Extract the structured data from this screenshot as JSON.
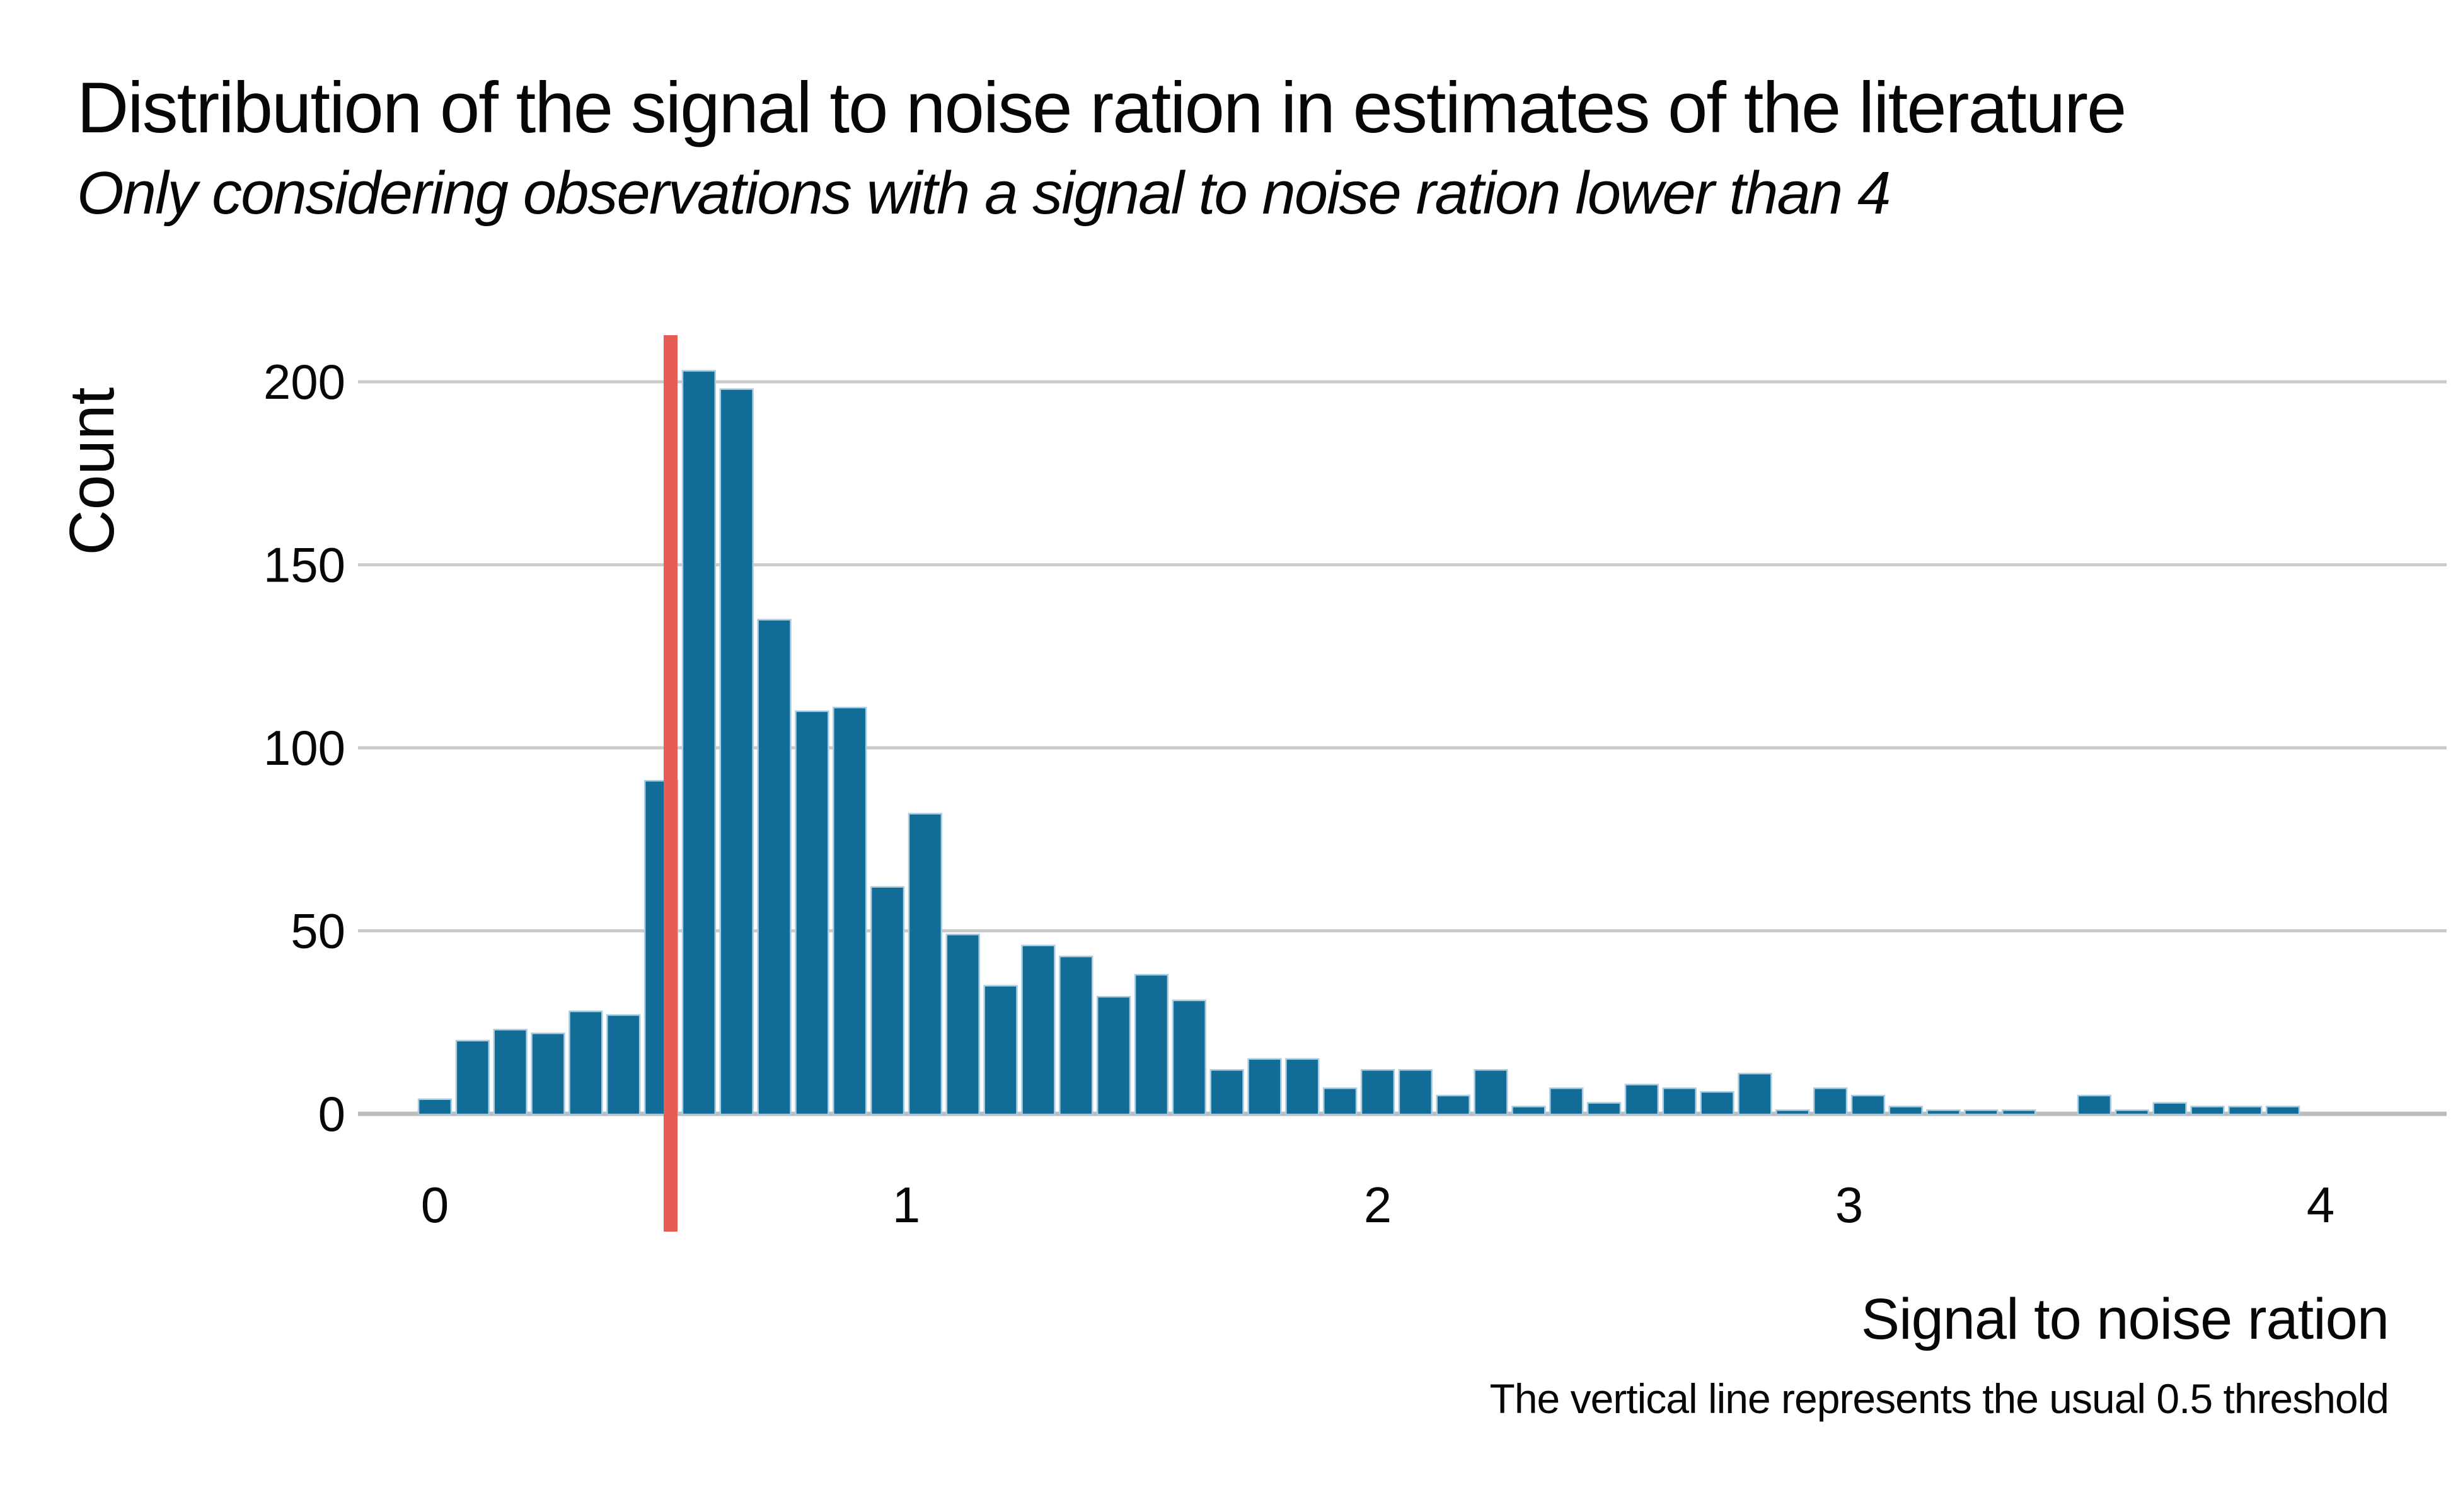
{
  "chart_data": {
    "type": "bar",
    "subtype": "histogram",
    "title": "Distribution of the signal to noise ration in estimates of the literature",
    "subtitle": "Only considering observations with a signal to noise ration lower than 4",
    "xlabel": "Signal to noise ration",
    "ylabel": "Count",
    "caption": "The vertical line represents the usual 0.5 threshold",
    "x_ticks": [
      0,
      1,
      2,
      3,
      4
    ],
    "y_ticks": [
      0,
      50,
      100,
      150,
      200
    ],
    "xlim": [
      -0.1,
      4.15
    ],
    "ylim": [
      0,
      213
    ],
    "grid": "horizontal-only",
    "legend_position": "none",
    "bin_width": 0.08,
    "bin_centers": [
      0.0,
      0.08,
      0.16,
      0.24,
      0.32,
      0.4,
      0.48,
      0.56,
      0.64,
      0.72,
      0.8,
      0.88,
      0.96,
      1.04,
      1.12,
      1.2,
      1.28,
      1.36,
      1.44,
      1.52,
      1.6,
      1.68,
      1.76,
      1.84,
      1.92,
      2.0,
      2.08,
      2.16,
      2.24,
      2.32,
      2.4,
      2.48,
      2.56,
      2.64,
      2.72,
      2.8,
      2.88,
      2.96,
      3.04,
      3.12,
      3.2,
      3.28,
      3.36,
      3.44,
      3.52,
      3.6,
      3.68,
      3.76,
      3.84,
      3.92
    ],
    "counts": [
      4,
      20,
      23,
      22,
      28,
      27,
      91,
      203,
      198,
      135,
      110,
      111,
      62,
      82,
      49,
      35,
      46,
      43,
      32,
      38,
      31,
      12,
      15,
      15,
      7,
      12,
      12,
      5,
      12,
      2,
      7,
      3,
      8,
      7,
      6,
      11,
      1,
      7,
      5,
      2,
      1,
      1,
      1,
      0,
      5,
      1,
      3,
      2,
      2,
      2
    ],
    "vline": {
      "x": 0.5,
      "threshold_label": "0.5",
      "color": "#e75d56"
    },
    "colors": {
      "bar_fill": "#116d97",
      "bar_stroke": "#abcddf",
      "vline": "#e75d56",
      "gridline": "#cbcbcb",
      "axisline": "#bdbdbd",
      "text": "#070707",
      "background": "#ffffff"
    }
  }
}
